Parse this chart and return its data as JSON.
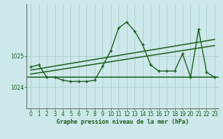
{
  "title": "Graphe pression niveau de la mer (hPa)",
  "bg_color": "#cce8ea",
  "grid_color": "#aacccc",
  "line_color": "#1a5c1a",
  "xlim": [
    -0.5,
    23.5
  ],
  "ylim": [
    1023.3,
    1026.7
  ],
  "yticks": [
    1024,
    1025
  ],
  "xticks": [
    0,
    1,
    2,
    3,
    4,
    5,
    6,
    7,
    8,
    9,
    10,
    11,
    12,
    13,
    14,
    15,
    16,
    17,
    18,
    19,
    20,
    21,
    22,
    23
  ],
  "hours": [
    0,
    1,
    2,
    3,
    4,
    5,
    6,
    7,
    8,
    9,
    10,
    11,
    12,
    13,
    14,
    15,
    16,
    17,
    18,
    19,
    20,
    21,
    22,
    23
  ],
  "pressure": [
    1024.65,
    1024.72,
    1024.32,
    1024.32,
    1024.22,
    1024.18,
    1024.18,
    1024.18,
    1024.22,
    1024.68,
    1025.18,
    1025.92,
    1026.12,
    1025.82,
    1025.38,
    1024.72,
    1024.52,
    1024.52,
    1024.52,
    1025.08,
    1024.32,
    1025.88,
    1024.48,
    1024.32
  ],
  "flat_line_y": 1024.32,
  "trend1_x": [
    0,
    23
  ],
  "trend1_y": [
    1024.55,
    1025.55
  ],
  "trend2_x": [
    0,
    23
  ],
  "trend2_y": [
    1024.42,
    1025.35
  ],
  "title_color": "#1a5c1a",
  "tick_color": "#1a5c1a",
  "font_size_title": 6.0,
  "font_size_ticks": 5.5,
  "spine_color": "#556655"
}
